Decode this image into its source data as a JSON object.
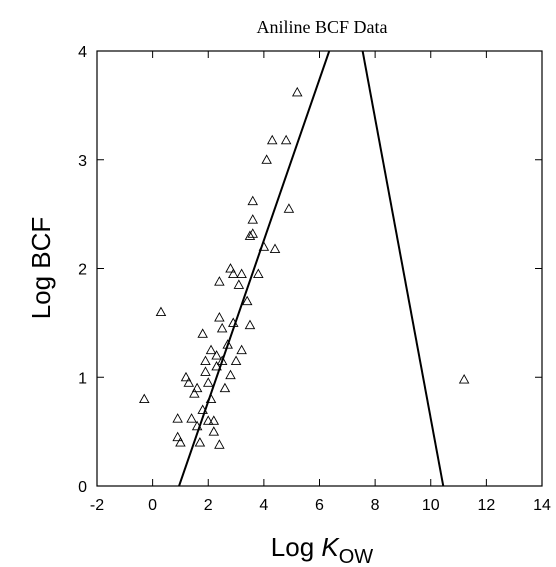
{
  "chart_data": {
    "type": "scatter",
    "title": "Aniline BCF Data",
    "xlabel": {
      "prefix": "Log ",
      "var": "K",
      "sub": "OW"
    },
    "ylabel": "Log BCF",
    "xlim": [
      -2,
      14
    ],
    "ylim": [
      0,
      4
    ],
    "xticks": [
      -2,
      0,
      2,
      4,
      6,
      8,
      10,
      12,
      14
    ],
    "yticks": [
      0,
      1,
      2,
      3,
      4
    ],
    "grid": false,
    "legend": "none",
    "marker": "triangle-open",
    "points": [
      {
        "x": -0.3,
        "y": 0.8
      },
      {
        "x": 0.3,
        "y": 1.6
      },
      {
        "x": 0.9,
        "y": 0.45
      },
      {
        "x": 0.9,
        "y": 0.62
      },
      {
        "x": 1.0,
        "y": 0.4
      },
      {
        "x": 1.2,
        "y": 1.0
      },
      {
        "x": 1.3,
        "y": 0.95
      },
      {
        "x": 1.4,
        "y": 0.62
      },
      {
        "x": 1.5,
        "y": 0.85
      },
      {
        "x": 1.6,
        "y": 0.9
      },
      {
        "x": 1.6,
        "y": 0.55
      },
      {
        "x": 1.7,
        "y": 0.4
      },
      {
        "x": 1.8,
        "y": 0.7
      },
      {
        "x": 1.8,
        "y": 1.4
      },
      {
        "x": 1.9,
        "y": 1.05
      },
      {
        "x": 1.9,
        "y": 1.15
      },
      {
        "x": 2.0,
        "y": 0.6
      },
      {
        "x": 2.0,
        "y": 0.95
      },
      {
        "x": 2.1,
        "y": 0.8
      },
      {
        "x": 2.1,
        "y": 1.25
      },
      {
        "x": 2.2,
        "y": 0.5
      },
      {
        "x": 2.2,
        "y": 0.6
      },
      {
        "x": 2.3,
        "y": 1.1
      },
      {
        "x": 2.3,
        "y": 1.2
      },
      {
        "x": 2.4,
        "y": 1.55
      },
      {
        "x": 2.4,
        "y": 1.88
      },
      {
        "x": 2.4,
        "y": 0.38
      },
      {
        "x": 2.5,
        "y": 1.45
      },
      {
        "x": 2.5,
        "y": 1.15
      },
      {
        "x": 2.6,
        "y": 0.9
      },
      {
        "x": 2.7,
        "y": 1.3
      },
      {
        "x": 2.8,
        "y": 1.02
      },
      {
        "x": 2.8,
        "y": 2.0
      },
      {
        "x": 2.9,
        "y": 1.95
      },
      {
        "x": 2.9,
        "y": 1.5
      },
      {
        "x": 3.0,
        "y": 1.15
      },
      {
        "x": 3.1,
        "y": 1.85
      },
      {
        "x": 3.2,
        "y": 1.95
      },
      {
        "x": 3.2,
        "y": 1.25
      },
      {
        "x": 3.4,
        "y": 1.7
      },
      {
        "x": 3.5,
        "y": 1.48
      },
      {
        "x": 3.5,
        "y": 2.3
      },
      {
        "x": 3.6,
        "y": 2.32
      },
      {
        "x": 3.6,
        "y": 2.62
      },
      {
        "x": 3.6,
        "y": 2.45
      },
      {
        "x": 3.8,
        "y": 1.95
      },
      {
        "x": 4.0,
        "y": 2.2
      },
      {
        "x": 4.1,
        "y": 3.0
      },
      {
        "x": 4.3,
        "y": 3.18
      },
      {
        "x": 4.4,
        "y": 2.18
      },
      {
        "x": 4.8,
        "y": 3.18
      },
      {
        "x": 4.9,
        "y": 2.55
      },
      {
        "x": 5.2,
        "y": 3.62
      },
      {
        "x": 11.2,
        "y": 0.98
      }
    ],
    "lines": [
      {
        "x": [
          0.95,
          6.35
        ],
        "y": [
          0.0,
          4.0
        ]
      },
      {
        "x": [
          7.55,
          10.45
        ],
        "y": [
          4.0,
          0.0
        ]
      }
    ]
  }
}
